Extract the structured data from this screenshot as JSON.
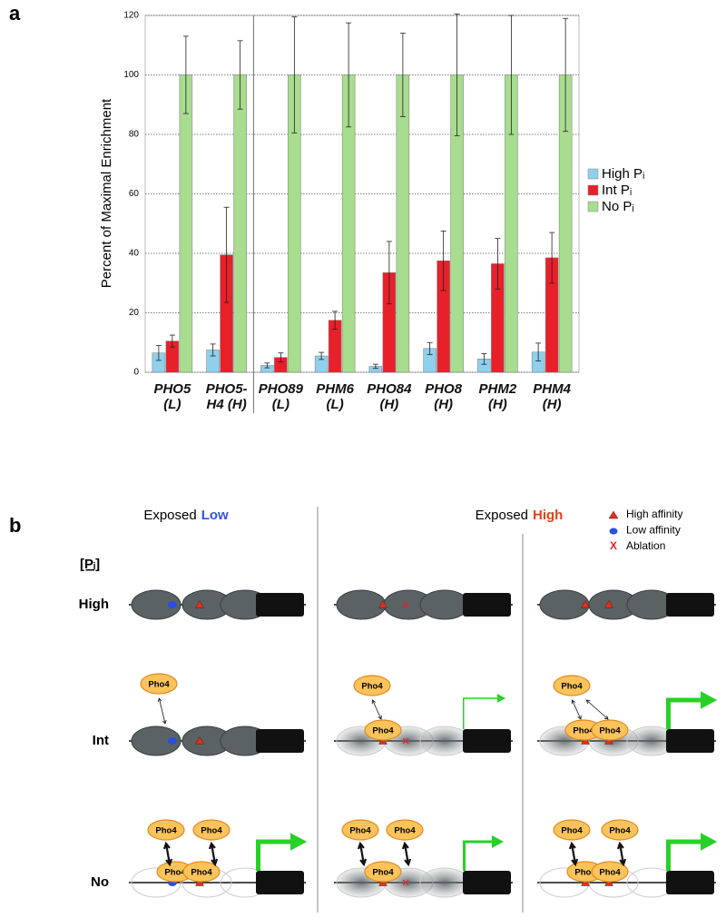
{
  "panel_labels": [
    "a",
    "b"
  ],
  "chart_data": {
    "type": "bar",
    "y_label": "Percent of Maximal Enrichment",
    "categories": [
      "PHO5 (L)",
      "PHO5-H4 (H)",
      "PHO89 (L)",
      "PHM6 (L)",
      "PHO84 (H)",
      "PHO8 (H)",
      "PHM2 (H)",
      "PHM4 (H)"
    ],
    "series": [
      {
        "name": "High Pᵢ",
        "color": "#8fd0ec",
        "values": [
          6.5,
          7.5,
          2.3,
          5.5,
          2.0,
          8.0,
          4.5,
          6.8
        ],
        "errors": [
          2.5,
          2.0,
          0.8,
          1.2,
          0.7,
          2.0,
          1.8,
          3.0
        ]
      },
      {
        "name": "Int Pᵢ",
        "color": "#e8202a",
        "values": [
          10.5,
          39.5,
          5.0,
          17.5,
          33.5,
          37.5,
          36.5,
          38.5
        ],
        "errors": [
          2.0,
          16.0,
          1.5,
          3.0,
          10.5,
          10.0,
          8.5,
          8.5
        ]
      },
      {
        "name": "No Pᵢ",
        "color": "#a8dc8f",
        "values": [
          100,
          100,
          100,
          100,
          100,
          100,
          100,
          100
        ],
        "errors": [
          13.0,
          11.5,
          19.5,
          17.5,
          14.0,
          20.5,
          20.0,
          19.0
        ]
      }
    ],
    "ylim": [
      0,
      120
    ],
    "yticks": [
      0,
      20,
      40,
      60,
      80,
      100,
      120
    ],
    "grid": true,
    "legend": "right"
  },
  "diagram": {
    "columns": [
      {
        "prefix": "Exposed",
        "emphasis": "Low",
        "emphasis_color": "#3355dd"
      },
      {
        "prefix": "Exposed",
        "emphasis": "High",
        "emphasis_color": "#e8401c"
      }
    ],
    "legend": [
      "High affinity",
      "Low affinity",
      "Ablation"
    ],
    "ablation_symbol": "X",
    "axis_label": "[Pᵢ]",
    "rows": [
      "High",
      "Int",
      "No"
    ],
    "protein": "Pho4"
  }
}
